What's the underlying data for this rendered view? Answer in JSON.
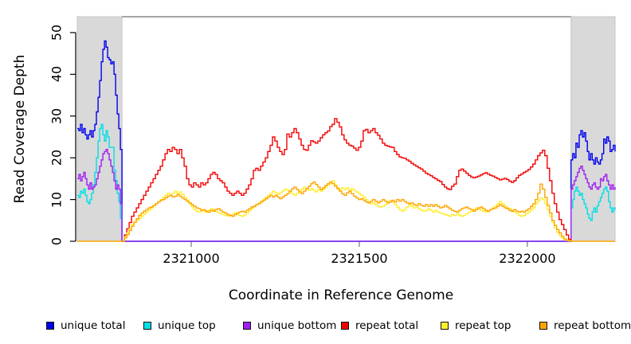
{
  "chart_data": {
    "type": "line",
    "title": "",
    "xlabel": "Coordinate in Reference Genome",
    "ylabel": "Read Coverage Depth",
    "x_domain": [
      2320661,
      2322261
    ],
    "y_domain": [
      0,
      53.8
    ],
    "x_ticks": [
      2321000,
      2321500,
      2322000
    ],
    "y_ticks": [
      0,
      10,
      20,
      30,
      40,
      50
    ],
    "grid": false,
    "legend_position": "bottom",
    "masked_region_color": "#D9D9D9",
    "masked_region_border": "#C4C4C4",
    "boundary_line_color": "#878787",
    "masked_regions": [
      [
        2320661,
        2320794
      ],
      [
        2322130,
        2322261
      ]
    ],
    "series": [
      {
        "name": "unique total",
        "color": "#0000EE",
        "segments": [
          {
            "x0": 2320661,
            "dx": 4.75,
            "y": [
              27,
              26.5,
              28,
              26,
              27,
              25.5,
              24.5,
              25.5,
              26.5,
              25,
              26.5,
              28,
              31,
              34.5,
              38.5,
              43,
              46,
              48,
              46.5,
              44,
              43.5,
              42.5,
              43,
              40,
              35,
              30.5,
              27,
              22,
              21
            ]
          },
          {
            "x0": 2320794,
            "dx": 1336,
            "y": [
              0,
              0
            ]
          },
          {
            "x0": 2322130,
            "dx": 4.85,
            "y": [
              19.5,
              21,
              20,
              23.5,
              22.5,
              25.5,
              26.5,
              25,
              26,
              24,
              21.5,
              19.5,
              21,
              19.5,
              18.5,
              20,
              19,
              18.5,
              19.5,
              21,
              24.5,
              23.5,
              25,
              24,
              21.5,
              22,
              23,
              21.5
            ]
          }
        ]
      },
      {
        "name": "unique top",
        "color": "#00E0E6",
        "segments": [
          {
            "x0": 2320661,
            "dx": 4.75,
            "y": [
              11,
              10.5,
              12,
              11.5,
              12.5,
              11,
              9.5,
              9,
              10,
              11.5,
              13.5,
              16.5,
              20,
              24,
              27,
              28,
              25.5,
              24,
              26.5,
              25,
              22.5,
              22.5,
              22.5,
              17,
              14.5,
              11.5,
              9.5,
              5.5,
              6
            ]
          },
          {
            "x0": 2320794,
            "dx": 1336,
            "y": [
              0,
              0
            ]
          },
          {
            "x0": 2322130,
            "dx": 4.85,
            "y": [
              8,
              10,
              12,
              13,
              12,
              11,
              11.5,
              10,
              9,
              8,
              6.5,
              5.5,
              5,
              7,
              8,
              7,
              8.5,
              9.5,
              10.5,
              11.5,
              12.5,
              13,
              12,
              9.5,
              8,
              7,
              8,
              7.5
            ]
          }
        ]
      },
      {
        "name": "unique bottom",
        "color": "#A020F0",
        "segments": [
          {
            "x0": 2320661,
            "dx": 4.75,
            "y": [
              15,
              16,
              14.5,
              15.5,
              16.5,
              15,
              13.5,
              12.5,
              14,
              12.5,
              13,
              13.5,
              15,
              16.5,
              18,
              19.5,
              21,
              21.5,
              22,
              21,
              19.5,
              18,
              16.5,
              14.5,
              12.5,
              13.5,
              12.5,
              9,
              7.5
            ]
          },
          {
            "x0": 2320794,
            "dx": 1336,
            "y": [
              0,
              0
            ]
          },
          {
            "x0": 2322130,
            "dx": 4.85,
            "y": [
              12.5,
              13.5,
              14.5,
              15.5,
              16.5,
              17.5,
              18,
              17,
              16,
              15,
              14,
              13,
              12.5,
              13.5,
              14,
              13,
              12.5,
              13,
              15,
              14.5,
              15.5,
              16,
              14.5,
              13.5,
              12.5,
              13.5,
              12.5,
              13
            ]
          }
        ]
      },
      {
        "name": "repeat total",
        "color": "#F40000",
        "segments": [
          {
            "x0": 2320794,
            "dx": 7.1064,
            "y": [
              0,
              1.5,
              3,
              4.5,
              6,
              7,
              8,
              9,
              10,
              11,
              12,
              13,
              14,
              15,
              16,
              17,
              18,
              19.5,
              21,
              22,
              21.5,
              22.5,
              22,
              21,
              22,
              20,
              18,
              15,
              13.5,
              13,
              14,
              13.5,
              13,
              14,
              13.5,
              14,
              15,
              16,
              16.5,
              16,
              15,
              14.5,
              14,
              13,
              12,
              11.5,
              11,
              11.5,
              12,
              11.5,
              11,
              11.5,
              12.5,
              13.5,
              15,
              17,
              17.5,
              17,
              18,
              19,
              20,
              21.5,
              23,
              25,
              24,
              22.5,
              21.5,
              20.8,
              22,
              25.7,
              25,
              26,
              27,
              26,
              24.5,
              23,
              22,
              21.8,
              23,
              24.1,
              23.8,
              23.5,
              24,
              24.8,
              25.5,
              26,
              26.4,
              27.5,
              28,
              29.4,
              28.5,
              27.4,
              25.5,
              24.3,
              23.5,
              23,
              22.8,
              22.3,
              21.8,
              22.5,
              24,
              26.5,
              26.8,
              26,
              26.5,
              27,
              26,
              25.4,
              24.5,
              23.5,
              23,
              22.8,
              22.6,
              22.5,
              21.5,
              20.8,
              20.2,
              20,
              19.9,
              19.5,
              19.2,
              18.7,
              18.3,
              18,
              17.6,
              17.3,
              16.8,
              16.3,
              16,
              15.7,
              15.3,
              15,
              14.6,
              14.3,
              13.6,
              13,
              12.6,
              12.4,
              13.2,
              13.7,
              15.5,
              17,
              17.3,
              16.8,
              16.3,
              15.8,
              15.4,
              15.2,
              15.4,
              15.6,
              15.9,
              16.2,
              16.4,
              16.1,
              15.8,
              15.6,
              15.3,
              15,
              14.7,
              14.9,
              15.1,
              14.8,
              14.4,
              14.1,
              14.5,
              15.2,
              15.8,
              16.1,
              16.5,
              16.8,
              17.2,
              17.8,
              18.5,
              19.5,
              20.5,
              21.2,
              21.8,
              20.5,
              17.5,
              14.5,
              11.5,
              9,
              7,
              5.2,
              4,
              2.8,
              1.5,
              0.5,
              0
            ]
          }
        ]
      },
      {
        "name": "repeat top",
        "color": "#FFEE2E",
        "segments": [
          {
            "x0": 2320794,
            "dx": 7.1064,
            "y": [
              0,
              1,
              2,
              3,
              4,
              4.5,
              5,
              5.5,
              6,
              6.5,
              7,
              7.5,
              8,
              8.5,
              9,
              9.5,
              10,
              10.5,
              11,
              11.5,
              11,
              11.5,
              12,
              11.5,
              11.8,
              11.2,
              10.5,
              9.8,
              9,
              8.3,
              7.6,
              7.2,
              7,
              7.5,
              7.2,
              6.9,
              7.4,
              7.8,
              7.5,
              7.2,
              6.9,
              6.6,
              6.4,
              6.2,
              6,
              6.2,
              6.5,
              6.8,
              6.5,
              6.2,
              6,
              6.3,
              6.8,
              7.3,
              7.8,
              8.3,
              8.8,
              9.2,
              9.6,
              10,
              10.5,
              11,
              11.5,
              12,
              11.6,
              11.2,
              11.6,
              12,
              12.5,
              12.2,
              11.8,
              11.4,
              11,
              11.5,
              12,
              12.5,
              13,
              12.6,
              12.2,
              12.6,
              12.2,
              11.8,
              12.4,
              12,
              12.5,
              13,
              13.5,
              14,
              14.5,
              13.5,
              12.8,
              12.2,
              12.8,
              12.4,
              12.8,
              12.2,
              12.6,
              12.2,
              11.8,
              11.4,
              11,
              10.6,
              10,
              9.4,
              9,
              9.2,
              8.8,
              8.4,
              8.2,
              8.4,
              8.8,
              9.4,
              9.8,
              9.4,
              8.8,
              8.2,
              7.6,
              7.2,
              7.6,
              8.2,
              8.8,
              8.4,
              8,
              8.2,
              7.8,
              7.4,
              7.2,
              7.4,
              7.8,
              7.4,
              7,
              7.4,
              7,
              6.8,
              6.6,
              6.4,
              6.2,
              6,
              6.4,
              6.2,
              6.6,
              6.2,
              6,
              6.2,
              6.6,
              7,
              7.2,
              7.6,
              8,
              7.8,
              7.4,
              7.2,
              7,
              7.2,
              7.6,
              8,
              8.5,
              9,
              9.5,
              9,
              8.5,
              8,
              7.8,
              7.4,
              7,
              6.6,
              6.2,
              6,
              6.2,
              6.6,
              7,
              7.5,
              8,
              9,
              9.6,
              10.4,
              10,
              9,
              7.5,
              6,
              4.5,
              3.2,
              2.2,
              1.4,
              0.8,
              0.4,
              0.2,
              0.1,
              0
            ]
          }
        ]
      },
      {
        "name": "repeat bottom",
        "color": "#FFA500",
        "segments": [
          {
            "x0": 2320661,
            "dx": 133,
            "y": [
              0,
              0
            ]
          },
          {
            "x0": 2320794,
            "dx": 7.1064,
            "y": [
              0,
              0.8,
              1.6,
              2.6,
              3.6,
              4.6,
              5.4,
              6.2,
              6.8,
              7.2,
              7.6,
              8,
              8.2,
              8.6,
              9,
              9.4,
              9.8,
              10,
              10.4,
              10.8,
              11,
              10.6,
              10.8,
              11.2,
              10.8,
              10.4,
              10,
              9.6,
              9.2,
              8.8,
              8.4,
              8,
              7.8,
              7.4,
              7.6,
              7.2,
              7,
              7.4,
              7.2,
              7.6,
              7.8,
              7.4,
              7,
              6.8,
              6.4,
              6.2,
              6,
              6.4,
              6.8,
              7,
              7.2,
              7,
              7.4,
              7.8,
              8.2,
              8.4,
              8.8,
              9,
              9.4,
              9.8,
              10.2,
              10.6,
              11,
              10.6,
              11,
              10.6,
              10.2,
              10.6,
              11,
              11.4,
              12,
              12.6,
              13,
              12.4,
              11.8,
              11.4,
              12,
              12.6,
              13.2,
              13.8,
              14.2,
              13.6,
              13,
              12.4,
              12.8,
              13.4,
              13.8,
              14.2,
              13.8,
              13.2,
              12.6,
              12,
              11.4,
              11,
              11.6,
              12,
              11.4,
              10.8,
              10.4,
              10,
              10.2,
              9.8,
              9.4,
              9.2,
              9.6,
              10,
              9.6,
              9.2,
              9.6,
              10,
              9.6,
              9.2,
              9.4,
              9.8,
              9.4,
              10,
              9.6,
              10,
              9.6,
              9.2,
              9,
              9.2,
              8.8,
              8.6,
              9,
              8.6,
              8.4,
              8.8,
              8.4,
              8.8,
              8.4,
              8.8,
              8.4,
              8,
              8.2,
              8.6,
              8.2,
              7.8,
              7.4,
              7.2,
              7,
              7.4,
              7.8,
              8,
              8.2,
              7.8,
              7.6,
              7.2,
              7.6,
              8,
              8.2,
              7.8,
              7.4,
              7.2,
              7.6,
              7.8,
              8,
              8.4,
              8.8,
              8.4,
              8,
              7.8,
              7.4,
              7.2,
              7.6,
              7.2,
              7,
              7.2,
              7,
              7.4,
              7.8,
              8.4,
              9,
              10,
              11.5,
              13.7,
              12.5,
              10.5,
              8.6,
              6.8,
              5,
              3.8,
              2.8,
              2,
              1.2,
              0.6,
              0.3,
              0.1,
              0
            ]
          },
          {
            "x0": 2322130,
            "dx": 131,
            "y": [
              0,
              0
            ]
          }
        ]
      }
    ]
  }
}
